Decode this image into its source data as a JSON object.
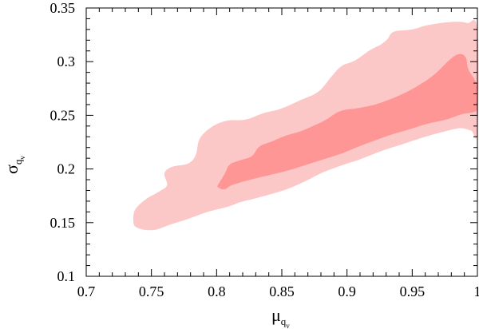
{
  "chart_data": {
    "type": "contour",
    "title": "",
    "xlabel": {
      "base": "μ",
      "sub": "q",
      "subsub": "v"
    },
    "ylabel": {
      "base": "σ",
      "sub": "q",
      "subsub": "v"
    },
    "xlim": [
      0.7,
      1.0
    ],
    "ylim": [
      0.1,
      0.35
    ],
    "x_ticks": [
      0.7,
      0.75,
      0.8,
      0.85,
      0.9,
      0.95,
      1.0
    ],
    "x_tick_labels": [
      "0.7",
      "0.75",
      "0.8",
      "0.85",
      "0.9",
      "0.95",
      "1"
    ],
    "y_ticks": [
      0.1,
      0.15,
      0.2,
      0.25,
      0.3,
      0.35
    ],
    "y_tick_labels": [
      "0.1",
      "0.15",
      "0.2",
      "0.25",
      "0.3",
      "0.35"
    ],
    "minor_x_step": 0.01,
    "minor_y_step": 0.01,
    "grid": false,
    "legend": "none",
    "regions": [
      {
        "level": "outer",
        "color": "#fcc7c7",
        "points": [
          [
            0.736,
            0.155
          ],
          [
            0.738,
            0.163
          ],
          [
            0.746,
            0.172
          ],
          [
            0.756,
            0.179
          ],
          [
            0.762,
            0.185
          ],
          [
            0.76,
            0.196
          ],
          [
            0.766,
            0.202
          ],
          [
            0.778,
            0.205
          ],
          [
            0.784,
            0.213
          ],
          [
            0.787,
            0.228
          ],
          [
            0.796,
            0.239
          ],
          [
            0.808,
            0.245
          ],
          [
            0.822,
            0.246
          ],
          [
            0.836,
            0.252
          ],
          [
            0.849,
            0.256
          ],
          [
            0.864,
            0.264
          ],
          [
            0.878,
            0.272
          ],
          [
            0.888,
            0.286
          ],
          [
            0.896,
            0.296
          ],
          [
            0.906,
            0.301
          ],
          [
            0.918,
            0.311
          ],
          [
            0.926,
            0.316
          ],
          [
            0.931,
            0.321
          ],
          [
            0.936,
            0.328
          ],
          [
            0.95,
            0.33
          ],
          [
            0.962,
            0.334
          ],
          [
            0.98,
            0.337
          ],
          [
            0.992,
            0.336
          ],
          [
            1.0,
            0.329
          ],
          [
            1.0,
            0.236
          ],
          [
            0.995,
            0.236
          ],
          [
            0.987,
            0.238
          ],
          [
            0.975,
            0.235
          ],
          [
            0.96,
            0.23
          ],
          [
            0.945,
            0.224
          ],
          [
            0.927,
            0.217
          ],
          [
            0.91,
            0.209
          ],
          [
            0.895,
            0.203
          ],
          [
            0.88,
            0.196
          ],
          [
            0.867,
            0.188
          ],
          [
            0.851,
            0.18
          ],
          [
            0.831,
            0.173
          ],
          [
            0.818,
            0.169
          ],
          [
            0.809,
            0.165
          ],
          [
            0.793,
            0.16
          ],
          [
            0.777,
            0.153
          ],
          [
            0.764,
            0.148
          ],
          [
            0.751,
            0.143
          ],
          [
            0.738,
            0.146
          ],
          [
            0.736,
            0.155
          ]
        ]
      },
      {
        "level": "inner",
        "color": "#ff9696",
        "points": [
          [
            0.801,
            0.185
          ],
          [
            0.806,
            0.195
          ],
          [
            0.81,
            0.204
          ],
          [
            0.818,
            0.208
          ],
          [
            0.827,
            0.212
          ],
          [
            0.833,
            0.221
          ],
          [
            0.843,
            0.226
          ],
          [
            0.853,
            0.231
          ],
          [
            0.864,
            0.235
          ],
          [
            0.874,
            0.24
          ],
          [
            0.884,
            0.246
          ],
          [
            0.895,
            0.254
          ],
          [
            0.91,
            0.257
          ],
          [
            0.924,
            0.261
          ],
          [
            0.941,
            0.269
          ],
          [
            0.955,
            0.278
          ],
          [
            0.967,
            0.288
          ],
          [
            0.979,
            0.302
          ],
          [
            0.986,
            0.307
          ],
          [
            0.991,
            0.304
          ],
          [
            0.993,
            0.293
          ],
          [
            0.998,
            0.283
          ],
          [
            1.0,
            0.276
          ],
          [
            1.0,
            0.257
          ],
          [
            0.997,
            0.253
          ],
          [
            0.988,
            0.251
          ],
          [
            0.976,
            0.246
          ],
          [
            0.961,
            0.242
          ],
          [
            0.948,
            0.237
          ],
          [
            0.934,
            0.232
          ],
          [
            0.92,
            0.226
          ],
          [
            0.907,
            0.22
          ],
          [
            0.895,
            0.214
          ],
          [
            0.882,
            0.209
          ],
          [
            0.869,
            0.204
          ],
          [
            0.856,
            0.199
          ],
          [
            0.843,
            0.195
          ],
          [
            0.826,
            0.19
          ],
          [
            0.812,
            0.185
          ],
          [
            0.806,
            0.181
          ],
          [
            0.801,
            0.183
          ],
          [
            0.801,
            0.185
          ]
        ]
      }
    ]
  }
}
